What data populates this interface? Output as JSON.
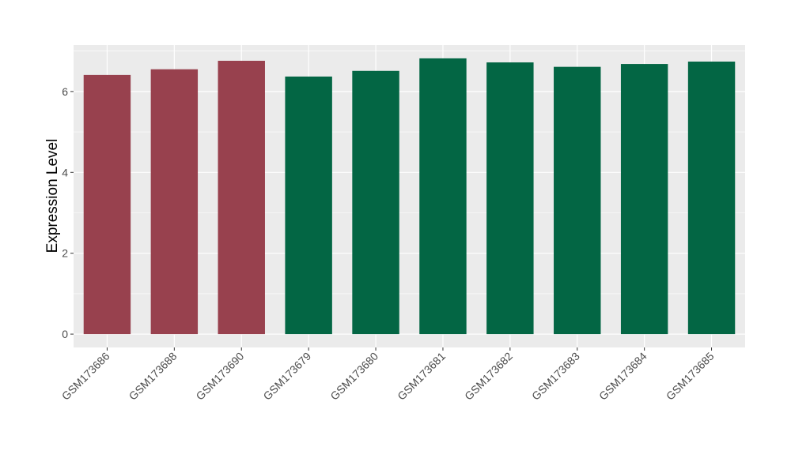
{
  "chart_data": {
    "type": "bar",
    "y_label": "Expression Level",
    "categories": [
      "GSM173686",
      "GSM173688",
      "GSM173690",
      "GSM173679",
      "GSM173680",
      "GSM173681",
      "GSM173682",
      "GSM173683",
      "GSM173684",
      "GSM173685"
    ],
    "values": [
      6.41,
      6.55,
      6.76,
      6.37,
      6.51,
      6.82,
      6.72,
      6.61,
      6.68,
      6.74
    ],
    "colors": [
      "#98414e",
      "#98414e",
      "#98414e",
      "#036644",
      "#036644",
      "#036644",
      "#036644",
      "#036644",
      "#036644",
      "#036644"
    ],
    "ylim": [
      -0.33,
      7.15
    ],
    "yticks": [
      0,
      2,
      4,
      6
    ],
    "minor_yticks": [
      1,
      3,
      5,
      7
    ],
    "grid": true
  }
}
